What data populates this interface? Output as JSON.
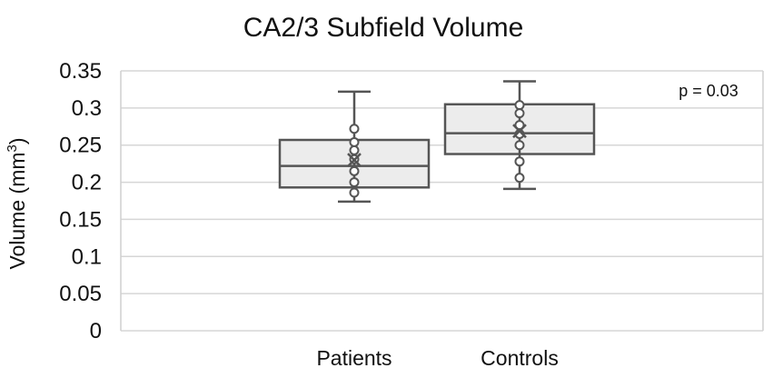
{
  "chart_data": {
    "type": "box",
    "title": "CA2/3 Subfield Volume",
    "ylabel": "Volume (mm",
    "ylabel_sup": "3",
    "ylabel_suffix": ")",
    "ylim": [
      0,
      0.35
    ],
    "yticks": [
      {
        "value": 0,
        "label": "0"
      },
      {
        "value": 0.05,
        "label": "0.05"
      },
      {
        "value": 0.1,
        "label": "0.1"
      },
      {
        "value": 0.15,
        "label": "0.15"
      },
      {
        "value": 0.2,
        "label": "0.2"
      },
      {
        "value": 0.25,
        "label": "0.25"
      },
      {
        "value": 0.3,
        "label": "0.3"
      },
      {
        "value": 0.35,
        "label": "0.35"
      }
    ],
    "grid": true,
    "categories": [
      "Patients",
      "Controls"
    ],
    "boxes": [
      {
        "category": "Patients",
        "min": 0.174,
        "q1": 0.193,
        "median": 0.222,
        "q3": 0.257,
        "max": 0.322,
        "mean": 0.23,
        "points": [
          0.272,
          0.254,
          0.243,
          0.231,
          0.215,
          0.2,
          0.186
        ]
      },
      {
        "category": "Controls",
        "min": 0.191,
        "q1": 0.238,
        "median": 0.266,
        "q3": 0.305,
        "max": 0.336,
        "mean": 0.269,
        "points": [
          0.304,
          0.293,
          0.277,
          0.265,
          0.25,
          0.228,
          0.206
        ]
      }
    ],
    "annotation": "p = 0.03"
  }
}
